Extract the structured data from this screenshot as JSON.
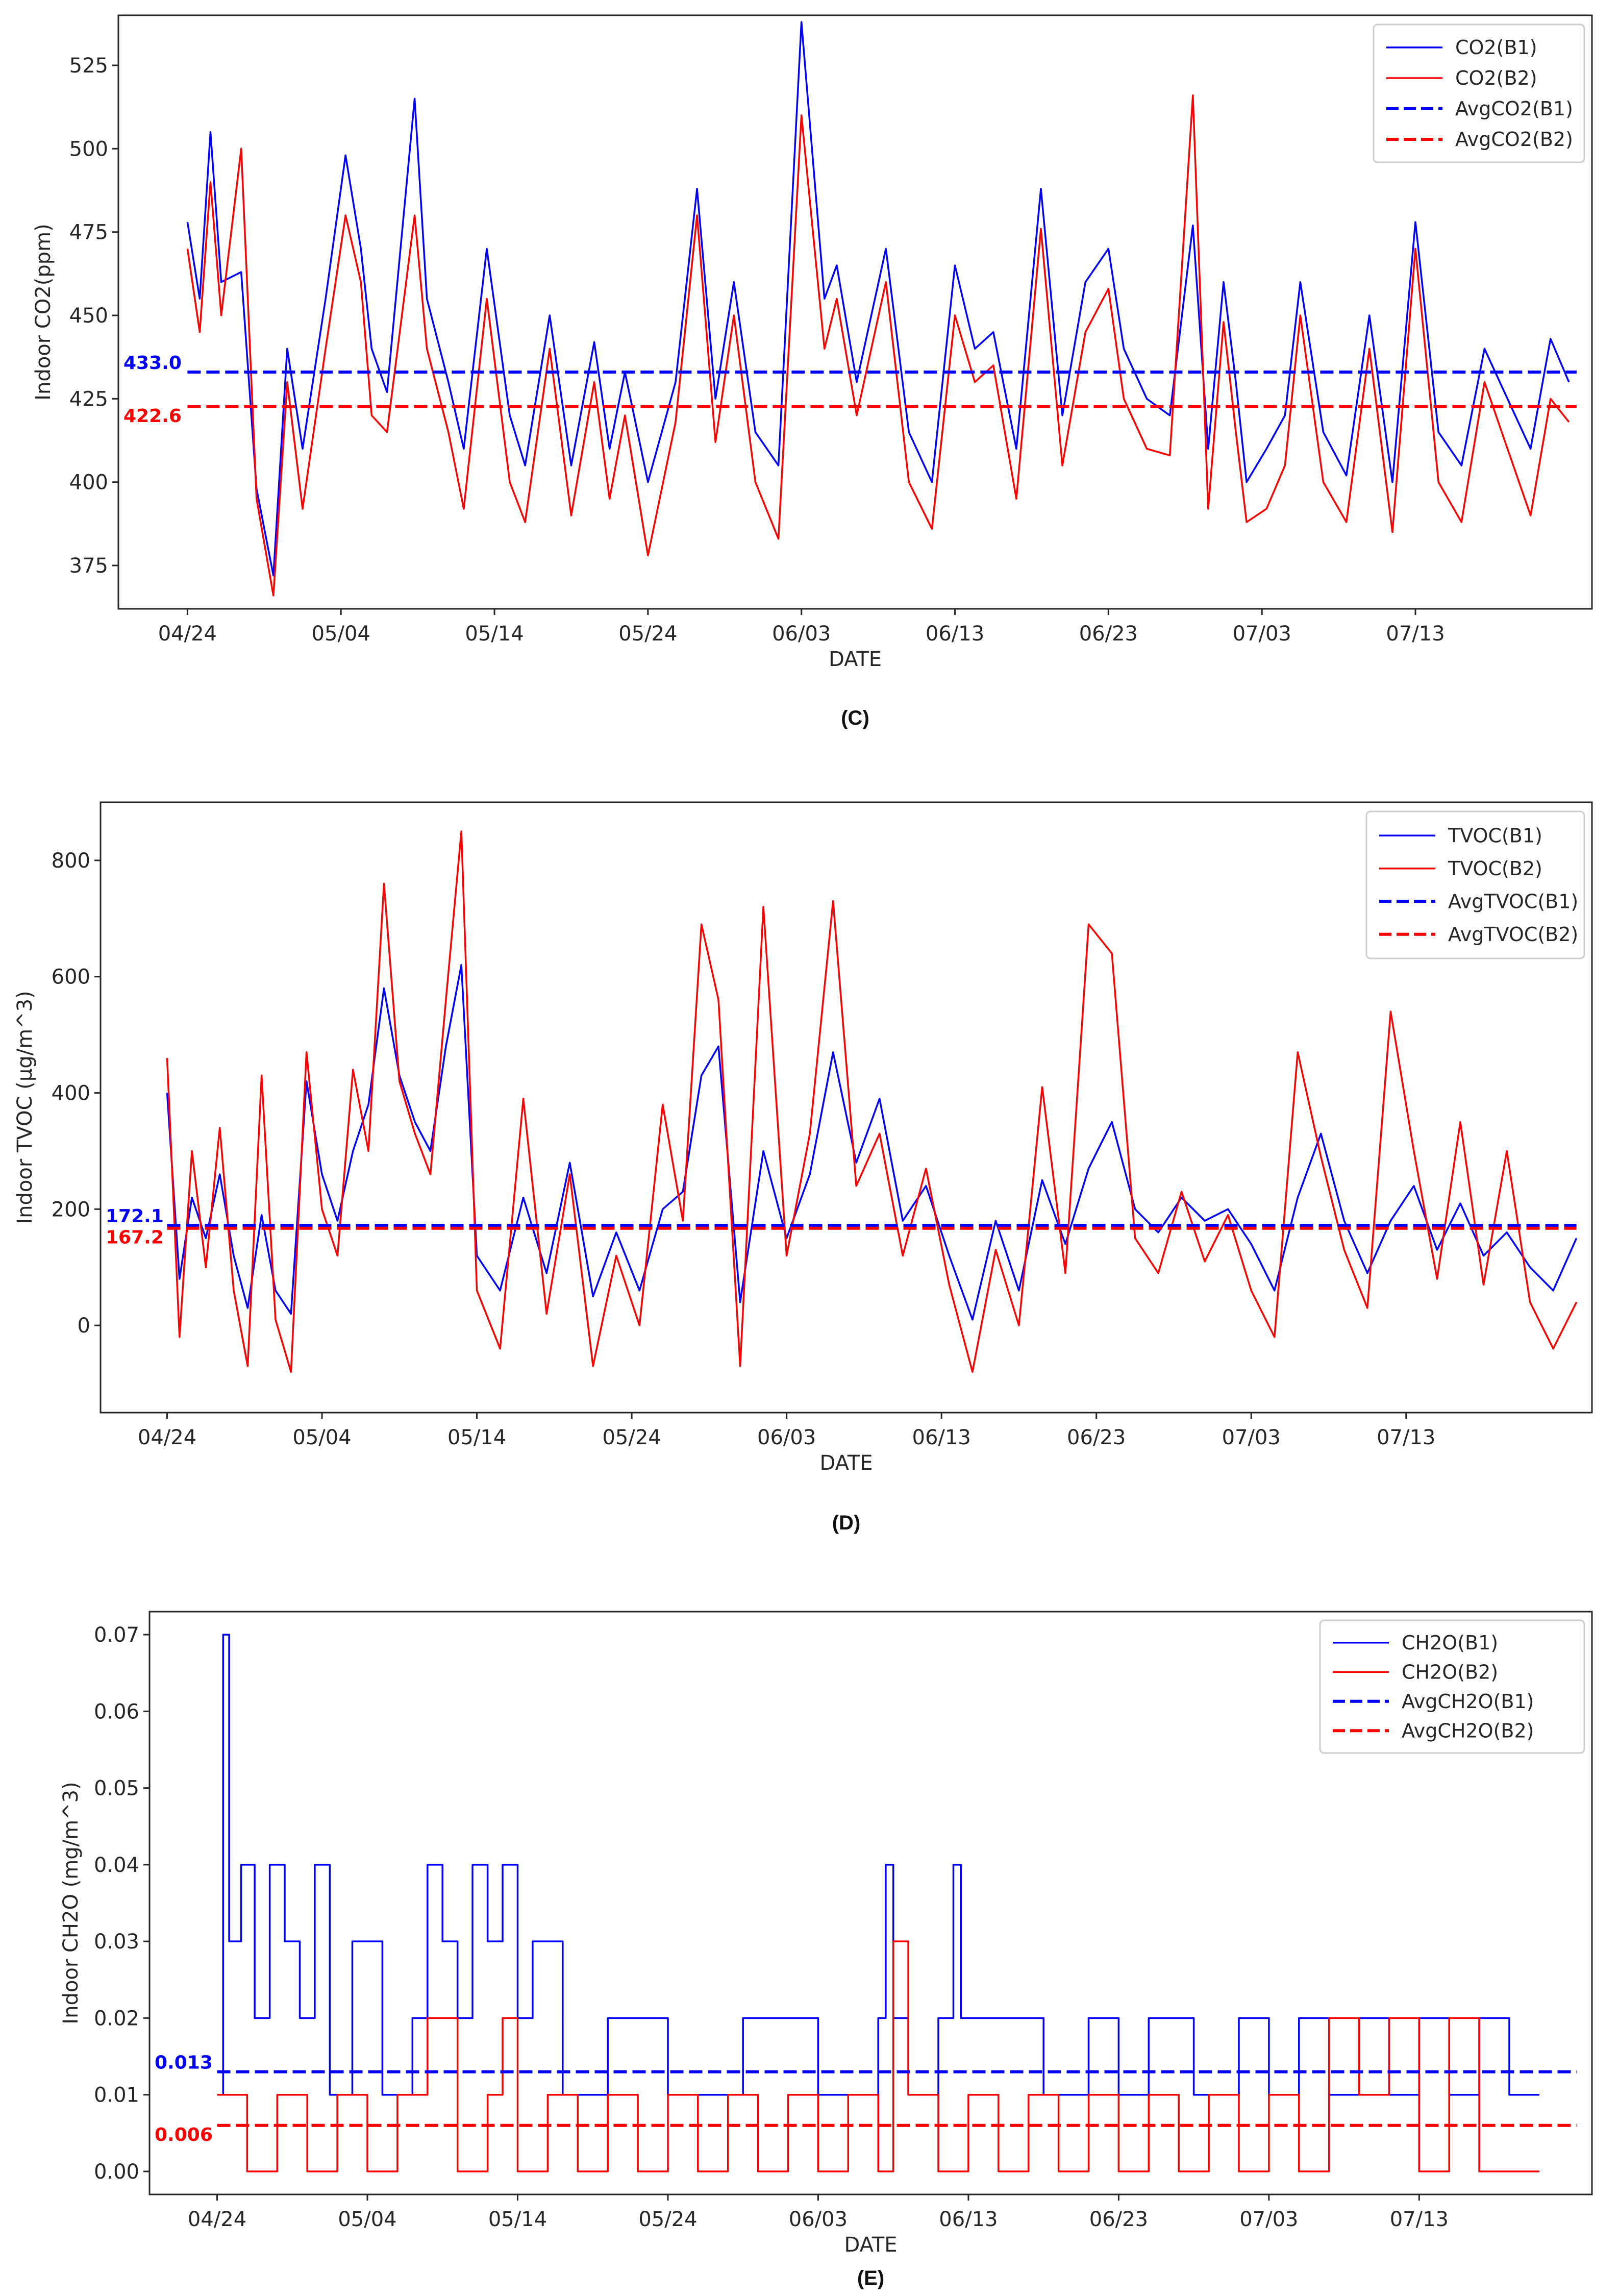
{
  "chart_data": [
    {
      "id": "C",
      "type": "line",
      "caption": "(C)",
      "xlabel": "DATE",
      "ylabel": "Indoor CO2(ppm)",
      "x_ticks": [
        "04/24",
        "05/04",
        "05/14",
        "05/24",
        "06/03",
        "06/13",
        "06/23",
        "07/03",
        "07/13"
      ],
      "y_ticks": [
        375,
        400,
        425,
        450,
        475,
        500,
        525
      ],
      "ylim": [
        362,
        540
      ],
      "xlim_days": [
        -4.5,
        91.5
      ],
      "series": [
        {
          "name": "CO2(B1)",
          "color": "#0000ff",
          "style": "solid",
          "x_days": [
            0,
            0.8,
            1.5,
            2.2,
            3.5,
            4.5,
            5.6,
            6.5,
            7.5,
            9,
            10.3,
            11.3,
            12,
            13,
            14.8,
            15.6,
            17,
            18,
            19.5,
            21,
            22,
            23.6,
            25,
            26.5,
            27.5,
            28.5,
            30,
            31.8,
            33.2,
            34.4,
            35.6,
            37,
            38.5,
            40,
            41.5,
            42.3,
            43.6,
            45.5,
            47,
            48.5,
            50,
            51.3,
            52.5,
            54,
            55.6,
            57,
            58.5,
            60,
            61,
            62.5,
            64,
            65.5,
            66.5,
            67.5,
            68.3,
            69,
            70.3,
            71.5,
            72.5,
            74,
            75.5,
            77,
            78.5,
            80,
            81.5,
            83,
            84.5,
            86,
            87.5,
            88.8,
            90
          ],
          "values": [
            478,
            455,
            505,
            460,
            463,
            398,
            372,
            440,
            410,
            455,
            498,
            470,
            440,
            427,
            515,
            455,
            430,
            410,
            470,
            420,
            405,
            450,
            405,
            442,
            410,
            433,
            400,
            430,
            488,
            425,
            460,
            415,
            405,
            538,
            455,
            465,
            430,
            470,
            415,
            400,
            465,
            440,
            445,
            410,
            488,
            420,
            460,
            470,
            440,
            425,
            420,
            477,
            410,
            460,
            430,
            400,
            410,
            420,
            460,
            415,
            402,
            450,
            400,
            478,
            415,
            405,
            440,
            425,
            410,
            443,
            430
          ]
        },
        {
          "name": "CO2(B2)",
          "color": "#ff0000",
          "style": "solid",
          "x_days": [
            0,
            0.8,
            1.5,
            2.2,
            3.5,
            4.5,
            5.6,
            6.5,
            7.5,
            9,
            10.3,
            11.3,
            12,
            13,
            14.8,
            15.6,
            17,
            18,
            19.5,
            21,
            22,
            23.6,
            25,
            26.5,
            27.5,
            28.5,
            30,
            31.8,
            33.2,
            34.4,
            35.6,
            37,
            38.5,
            40,
            41.5,
            42.3,
            43.6,
            45.5,
            47,
            48.5,
            50,
            51.3,
            52.5,
            54,
            55.6,
            57,
            58.5,
            60,
            61,
            62.5,
            64,
            65.5,
            66.5,
            67.5,
            68.3,
            69,
            70.3,
            71.5,
            72.5,
            74,
            75.5,
            77,
            78.5,
            80,
            81.5,
            83,
            84.5,
            86,
            87.5,
            88.8,
            90
          ],
          "values": [
            470,
            445,
            490,
            450,
            500,
            395,
            366,
            430,
            392,
            440,
            480,
            460,
            420,
            415,
            480,
            440,
            415,
            392,
            455,
            400,
            388,
            440,
            390,
            430,
            395,
            420,
            378,
            418,
            480,
            412,
            450,
            400,
            383,
            510,
            440,
            455,
            420,
            460,
            400,
            386,
            450,
            430,
            435,
            395,
            476,
            405,
            445,
            458,
            425,
            410,
            408,
            516,
            392,
            448,
            415,
            388,
            392,
            405,
            450,
            400,
            388,
            440,
            385,
            470,
            400,
            388,
            430,
            410,
            390,
            425,
            418
          ]
        },
        {
          "name": "AvgCO2(B1)",
          "color": "#0000ff",
          "style": "dashed",
          "avg": 433.0,
          "avg_label": "433.0"
        },
        {
          "name": "AvgCO2(B2)",
          "color": "#ff0000",
          "style": "dashed",
          "avg": 422.6,
          "avg_label": "422.6"
        }
      ]
    },
    {
      "id": "D",
      "type": "line",
      "caption": "(D)",
      "xlabel": "DATE",
      "ylabel": "Indoor TVOC (µg/m^3)",
      "x_ticks": [
        "04/24",
        "05/04",
        "05/14",
        "05/24",
        "06/03",
        "06/13",
        "06/23",
        "07/03",
        "07/13"
      ],
      "y_ticks": [
        0,
        200,
        400,
        600,
        800
      ],
      "ylim": [
        -150,
        900
      ],
      "xlim_days": [
        -4.3,
        92
      ],
      "series": [
        {
          "name": "TVOC(B1)",
          "color": "#0000ff",
          "style": "solid",
          "x_days": [
            0,
            0.8,
            1.6,
            2.5,
            3.4,
            4.3,
            5.2,
            6.1,
            7,
            8,
            9,
            10,
            11,
            12,
            13,
            14,
            15,
            16,
            17,
            18,
            19,
            20,
            21.5,
            23,
            24.5,
            26,
            27.5,
            29,
            30.5,
            32,
            33.3,
            34.5,
            35.6,
            37,
            38.5,
            40,
            41.5,
            43,
            44.5,
            46,
            47.5,
            49,
            50.5,
            52,
            53.5,
            55,
            56.5,
            58,
            59.5,
            61,
            62.5,
            64,
            65.5,
            67,
            68.5,
            70,
            71.5,
            73,
            74.5,
            76,
            77.5,
            79,
            80.5,
            82,
            83.5,
            85,
            86.5,
            88,
            89.5,
            91
          ],
          "values": [
            400,
            80,
            220,
            150,
            260,
            120,
            30,
            190,
            60,
            20,
            420,
            260,
            180,
            300,
            380,
            580,
            430,
            350,
            300,
            480,
            620,
            120,
            60,
            220,
            90,
            280,
            50,
            160,
            60,
            200,
            230,
            430,
            480,
            40,
            300,
            150,
            260,
            470,
            280,
            390,
            180,
            240,
            120,
            10,
            180,
            60,
            250,
            140,
            270,
            350,
            200,
            160,
            220,
            180,
            200,
            140,
            60,
            220,
            330,
            180,
            90,
            180,
            240,
            130,
            210,
            120,
            160,
            100,
            60,
            150
          ]
        },
        {
          "name": "TVOC(B2)",
          "color": "#ff0000",
          "style": "solid",
          "x_days": [
            0,
            0.8,
            1.6,
            2.5,
            3.4,
            4.3,
            5.2,
            6.1,
            7,
            8,
            9,
            10,
            11,
            12,
            13,
            14,
            15,
            16,
            17,
            18,
            19,
            20,
            21.5,
            23,
            24.5,
            26,
            27.5,
            29,
            30.5,
            32,
            33.3,
            34.5,
            35.6,
            37,
            38.5,
            40,
            41.5,
            43,
            44.5,
            46,
            47.5,
            49,
            50.5,
            52,
            53.5,
            55,
            56.5,
            58,
            59.5,
            61,
            62.5,
            64,
            65.5,
            67,
            68.5,
            70,
            71.5,
            73,
            74.5,
            76,
            77.5,
            79,
            80.5,
            82,
            83.5,
            85,
            86.5,
            88,
            89.5,
            91
          ],
          "values": [
            460,
            -20,
            300,
            100,
            340,
            60,
            -70,
            430,
            10,
            -80,
            470,
            200,
            120,
            440,
            300,
            760,
            420,
            330,
            260,
            560,
            850,
            60,
            -40,
            390,
            20,
            260,
            -70,
            120,
            0,
            380,
            180,
            690,
            560,
            -70,
            720,
            120,
            330,
            730,
            240,
            330,
            120,
            270,
            70,
            -80,
            130,
            0,
            410,
            90,
            690,
            640,
            150,
            90,
            230,
            110,
            190,
            60,
            -20,
            470,
            290,
            130,
            30,
            540,
            300,
            80,
            350,
            70,
            300,
            40,
            -40,
            40
          ]
        },
        {
          "name": "AvgTVOC(B1)",
          "color": "#0000ff",
          "style": "dashed",
          "avg": 172.1,
          "avg_label": "172.1"
        },
        {
          "name": "AvgTVOC(B2)",
          "color": "#ff0000",
          "style": "dashed",
          "avg": 167.2,
          "avg_label": "167.2"
        }
      ]
    },
    {
      "id": "E",
      "type": "line",
      "caption": "(E)",
      "xlabel": "DATE",
      "ylabel": "Indoor CH2O (mg/m^3)",
      "x_ticks": [
        "04/24",
        "05/04",
        "05/14",
        "05/24",
        "06/03",
        "06/13",
        "06/23",
        "07/03",
        "07/13"
      ],
      "y_ticks": [
        "0.00",
        "0.01",
        "0.02",
        "0.03",
        "0.04",
        "0.05",
        "0.06",
        "0.07"
      ],
      "ylim": [
        -0.003,
        0.073
      ],
      "xlim_days": [
        -4.5,
        91.5
      ],
      "series": [
        {
          "name": "CH2O(B1)",
          "color": "#0000ff",
          "style": "solid",
          "x_days": [
            0,
            0.4,
            0.8,
            1.6,
            2.5,
            3.5,
            4.5,
            5.5,
            6.5,
            7.5,
            9,
            11,
            13,
            14,
            15,
            16,
            17,
            18,
            19,
            20,
            21,
            23,
            26,
            30,
            35,
            40,
            44,
            44.5,
            45,
            46,
            48,
            49,
            49.5,
            52,
            55,
            58,
            60,
            62,
            65,
            68,
            70,
            72,
            74,
            76,
            78,
            80,
            82,
            84,
            86,
            88
          ],
          "values": [
            0.01,
            0.07,
            0.03,
            0.04,
            0.02,
            0.04,
            0.03,
            0.02,
            0.04,
            0.01,
            0.03,
            0.01,
            0.02,
            0.04,
            0.03,
            0.02,
            0.04,
            0.03,
            0.04,
            0.02,
            0.03,
            0.01,
            0.02,
            0.01,
            0.02,
            0.01,
            0.02,
            0.04,
            0.02,
            0.01,
            0.02,
            0.04,
            0.02,
            0.02,
            0.01,
            0.02,
            0.01,
            0.02,
            0.01,
            0.02,
            0.01,
            0.02,
            0.01,
            0.02,
            0.01,
            0.02,
            0.01,
            0.02,
            0.01,
            0.01
          ]
        },
        {
          "name": "CH2O(B2)",
          "color": "#ff0000",
          "style": "solid",
          "x_days": [
            0,
            2,
            4,
            6,
            8,
            10,
            12,
            14,
            16,
            18,
            19,
            20,
            22,
            24,
            26,
            28,
            30,
            32,
            34,
            36,
            38,
            40,
            42,
            44,
            45,
            46,
            48,
            50,
            52,
            54,
            56,
            58,
            60,
            62,
            64,
            66,
            68,
            70,
            72,
            74,
            76,
            78,
            80,
            82,
            84,
            86,
            88
          ],
          "values": [
            0.01,
            0.0,
            0.01,
            0.0,
            0.01,
            0.0,
            0.01,
            0.02,
            0.0,
            0.01,
            0.02,
            0.0,
            0.01,
            0.0,
            0.01,
            0.0,
            0.01,
            0.0,
            0.01,
            0.0,
            0.01,
            0.0,
            0.01,
            0.0,
            0.03,
            0.01,
            0.0,
            0.01,
            0.0,
            0.01,
            0.0,
            0.01,
            0.0,
            0.01,
            0.0,
            0.01,
            0.0,
            0.01,
            0.0,
            0.02,
            0.01,
            0.02,
            0.0,
            0.02,
            0.0,
            0.0,
            0.0
          ]
        },
        {
          "name": "AvgCH2O(B1)",
          "color": "#0000ff",
          "style": "dashed",
          "avg": 0.013,
          "avg_label": "0.013"
        },
        {
          "name": "AvgCH2O(B2)",
          "color": "#ff0000",
          "style": "dashed",
          "avg": 0.006,
          "avg_label": "0.006"
        }
      ]
    }
  ]
}
